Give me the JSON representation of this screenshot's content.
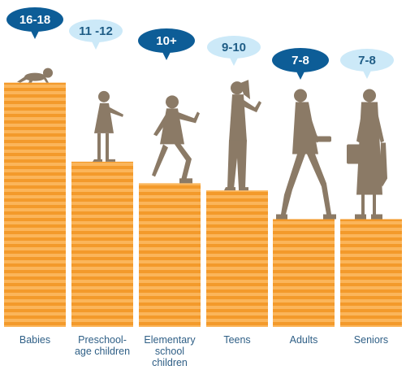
{
  "chart_data": {
    "type": "bar",
    "title": "",
    "xlabel": "",
    "ylabel": "",
    "categories": [
      {
        "lines": [
          "Babies"
        ]
      },
      {
        "lines": [
          "Preschool-",
          "age children"
        ]
      },
      {
        "lines": [
          "Elementary",
          "school",
          "children"
        ]
      },
      {
        "lines": [
          "Teens"
        ]
      },
      {
        "lines": [
          "Adults"
        ]
      },
      {
        "lines": [
          "Seniors"
        ]
      }
    ],
    "value_labels": [
      "16-18",
      "11 -12",
      "10+",
      "9-10",
      "7-8",
      "7-8"
    ],
    "values": [
      17,
      11.5,
      10,
      9.5,
      7.5,
      7.5
    ],
    "ylim": [
      0,
      18
    ],
    "grid": false,
    "legend": "none"
  },
  "colors": {
    "bar_light": "#fbb55a",
    "bar_dark": "#f39a2b",
    "label_text": "#2f5f86",
    "bubble_dark": "#0d5d97",
    "bubble_light": "#cce9f8",
    "bubble_dark_text": "#ffffff",
    "bubble_light_text": "#1f5d86",
    "figure": "#8b7a66"
  },
  "bubble_styles": [
    "dark",
    "light",
    "dark",
    "light",
    "dark",
    "light"
  ],
  "figures": [
    "crawling-baby-figure",
    "preschool-child-figure",
    "running-child-figure",
    "teen-with-phone-figure",
    "adult-walking-figure",
    "senior-with-umbrella-figure"
  ]
}
